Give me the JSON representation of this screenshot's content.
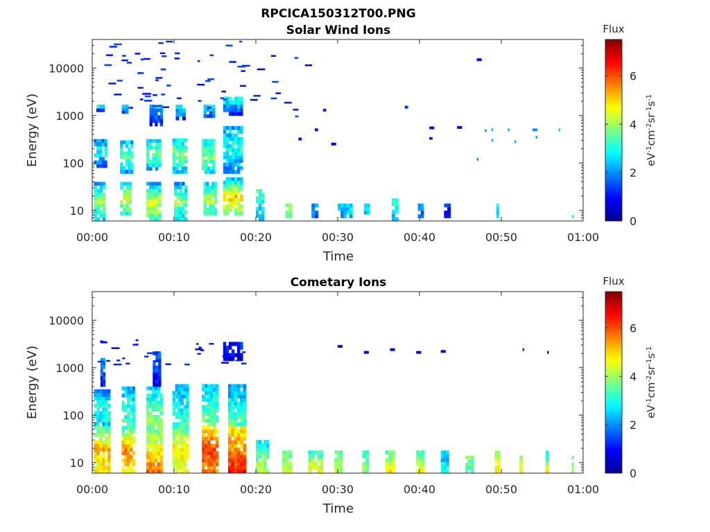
{
  "figure_title": "RPCICA150312T00.PNG",
  "chart_data": [
    {
      "type": "heatmap",
      "title": "Solar Wind Ions",
      "xlabel": "Time",
      "ylabel": "Energy (eV)",
      "yscale": "log",
      "ylim": [
        6,
        40000
      ],
      "xlim_minutes": [
        0,
        60
      ],
      "x_tick_labels": [
        "00:00",
        "00:10",
        "00:20",
        "00:30",
        "00:40",
        "00:50",
        "01:00"
      ],
      "y_tick_labels": [
        "10",
        "100",
        "1000",
        "10000"
      ],
      "y_tick_values": [
        10,
        100,
        1000,
        10000
      ],
      "colorbar": {
        "label": "Flux",
        "unit_label": "eV-1cm-2sr-1s-1",
        "clim": [
          0,
          7.5
        ],
        "tick_labels": [
          "0",
          "2",
          "4",
          "6"
        ],
        "tick_values": [
          0,
          2,
          4,
          6
        ],
        "colormap": "jet"
      },
      "grid": false,
      "patches": [
        {
          "x": [
            0.2,
            1.6
          ],
          "e": [
            6,
            40
          ],
          "flux": [
            2.6,
            4.0,
            2.2
          ]
        },
        {
          "x": [
            0.2,
            1.8
          ],
          "e": [
            80,
            320
          ],
          "flux": [
            1.2,
            3.0,
            2.0
          ]
        },
        {
          "x": [
            0.5,
            1.5
          ],
          "e": [
            1200,
            1700
          ],
          "flux": [
            1.5,
            3.0
          ]
        },
        {
          "x": [
            3.4,
            4.8
          ],
          "e": [
            8,
            40
          ],
          "flux": [
            3.0,
            4.5,
            2.6
          ]
        },
        {
          "x": [
            3.4,
            5.0
          ],
          "e": [
            60,
            300
          ],
          "flux": [
            2.0,
            3.5,
            2.4
          ]
        },
        {
          "x": [
            3.6,
            4.4
          ],
          "e": [
            1100,
            1700
          ],
          "flux": [
            1.5,
            2.5
          ]
        },
        {
          "x": [
            6.6,
            8.4
          ],
          "e": [
            6,
            40
          ],
          "flux": [
            3.2,
            4.4,
            2.2
          ]
        },
        {
          "x": [
            6.6,
            8.4
          ],
          "e": [
            70,
            320
          ],
          "flux": [
            2.2,
            3.6,
            2.8
          ]
        },
        {
          "x": [
            7.0,
            8.6
          ],
          "e": [
            600,
            1700
          ],
          "flux": [
            1.0,
            2.4
          ]
        },
        {
          "x": [
            10.0,
            11.6
          ],
          "e": [
            6,
            40
          ],
          "flux": [
            2.5,
            3.8,
            2.0
          ]
        },
        {
          "x": [
            9.8,
            11.6
          ],
          "e": [
            60,
            330
          ],
          "flux": [
            2.4,
            3.8,
            2.8
          ]
        },
        {
          "x": [
            10.2,
            11.4
          ],
          "e": [
            800,
            1700
          ],
          "flux": [
            1.4,
            2.6
          ]
        },
        {
          "x": [
            13.6,
            15.2
          ],
          "e": [
            8,
            40
          ],
          "flux": [
            3.2,
            4.2,
            2.4
          ]
        },
        {
          "x": [
            13.4,
            15.0
          ],
          "e": [
            60,
            320
          ],
          "flux": [
            2.6,
            3.8,
            2.8
          ]
        },
        {
          "x": [
            13.6,
            15.0
          ],
          "e": [
            900,
            1700
          ],
          "flux": [
            1.4,
            2.8
          ]
        },
        {
          "x": [
            16.0,
            18.4
          ],
          "e": [
            8,
            50
          ],
          "flux": [
            3.6,
            5.0,
            2.4
          ]
        },
        {
          "x": [
            16.0,
            18.4
          ],
          "e": [
            60,
            600
          ],
          "flux": [
            1.8,
            3.0,
            2.2
          ]
        },
        {
          "x": [
            16.0,
            18.4
          ],
          "e": [
            1000,
            2500
          ],
          "flux": [
            1.2,
            3.0
          ]
        },
        {
          "x": [
            20.0,
            21.0
          ],
          "e": [
            6,
            28
          ],
          "flux": [
            2.0,
            3.4
          ]
        },
        {
          "x": [
            23.6,
            24.4
          ],
          "e": [
            7,
            14
          ],
          "flux": [
            3.6,
            3.8
          ]
        },
        {
          "x": [
            26.8,
            27.6
          ],
          "e": [
            7,
            14
          ],
          "flux": [
            1.8,
            2.2
          ]
        },
        {
          "x": [
            30.0,
            31.8
          ],
          "e": [
            7,
            14
          ],
          "flux": [
            2.2,
            2.6
          ]
        },
        {
          "x": [
            33.2,
            33.9
          ],
          "e": [
            7,
            14
          ],
          "flux": [
            2.4,
            2.6
          ]
        },
        {
          "x": [
            36.6,
            37.4
          ],
          "e": [
            6,
            18
          ],
          "flux": [
            2.6,
            2.8
          ]
        },
        {
          "x": [
            39.8,
            40.5
          ],
          "e": [
            7,
            14
          ],
          "flux": [
            1.8,
            2.0
          ]
        },
        {
          "x": [
            43.0,
            43.8
          ],
          "e": [
            7,
            14
          ],
          "flux": [
            1.2,
            1.6
          ]
        },
        {
          "x": [
            49.4,
            49.7
          ],
          "e": [
            7,
            14
          ],
          "flux": [
            2.6,
            2.8
          ]
        },
        {
          "x": [
            58.6,
            58.8
          ],
          "e": [
            7,
            8
          ],
          "flux": [
            3.0
          ]
        }
      ],
      "bursts": [
        {
          "t0": 0,
          "t1": 18.5,
          "e0": 1500,
          "e1": 38000,
          "flux": 0.9,
          "count": 55
        },
        {
          "t0": 19,
          "t1": 27,
          "e0": 900,
          "e1": 30000,
          "flux": 0.8,
          "count": 12
        }
      ],
      "segments": [
        {
          "x": [
            41.2,
            41.8
          ],
          "e": 550,
          "flux": 1.0
        },
        {
          "x": [
            44.6,
            45.2
          ],
          "e": 560,
          "flux": 0.8
        },
        {
          "x": [
            47.0,
            47.6
          ],
          "e": 15000,
          "flux": 0.9
        },
        {
          "x": [
            41.2,
            41.6
          ],
          "e": 330,
          "flux": 1.2
        },
        {
          "x": [
            38.2,
            38.6
          ],
          "e": 1500,
          "flux": 1.2
        },
        {
          "x": [
            27.2,
            27.6
          ],
          "e": 500,
          "flux": 1.0
        },
        {
          "x": [
            25.2,
            25.6
          ],
          "e": 320,
          "flux": 1.0
        },
        {
          "x": [
            28.2,
            28.6
          ],
          "e": 1300,
          "flux": 1.2
        },
        {
          "x": [
            29.2,
            29.8
          ],
          "e": 250,
          "flux": 1.0
        },
        {
          "x": [
            48.0,
            48.2
          ],
          "e": 480,
          "flux": 2.0
        },
        {
          "x": [
            48.8,
            49.0
          ],
          "e": 500,
          "flux": 2.2
        },
        {
          "x": [
            48.8,
            49.0
          ],
          "e": 300,
          "flux": 2.2
        },
        {
          "x": [
            50.8,
            51.0
          ],
          "e": 500,
          "flux": 2.2
        },
        {
          "x": [
            51.6,
            51.8
          ],
          "e": 280,
          "flux": 2.2
        },
        {
          "x": [
            53.8,
            54.4
          ],
          "e": 500,
          "flux": 2.0
        },
        {
          "x": [
            54.2,
            54.4
          ],
          "e": 350,
          "flux": 2.2
        },
        {
          "x": [
            57.0,
            57.2
          ],
          "e": 500,
          "flux": 2.4
        },
        {
          "x": [
            47.0,
            47.2
          ],
          "e": 120,
          "flux": 2.0
        }
      ]
    },
    {
      "type": "heatmap",
      "title": "Cometary Ions",
      "xlabel": "Time",
      "ylabel": "Energy (eV)",
      "yscale": "log",
      "ylim": [
        6,
        40000
      ],
      "xlim_minutes": [
        0,
        60
      ],
      "x_tick_labels": [
        "00:00",
        "00:10",
        "00:20",
        "00:30",
        "00:40",
        "00:50",
        "01:00"
      ],
      "y_tick_labels": [
        "10",
        "100",
        "1000",
        "10000"
      ],
      "y_tick_values": [
        10,
        100,
        1000,
        10000
      ],
      "colorbar": {
        "label": "Flux",
        "unit_label": "eV-1cm-2sr-1s-1",
        "clim": [
          0,
          7.5
        ],
        "tick_labels": [
          "0",
          "2",
          "4",
          "6"
        ],
        "tick_values": [
          0,
          2,
          4,
          6
        ],
        "colormap": "jet"
      },
      "grid": false,
      "patches": [
        {
          "x": [
            0.2,
            2.2
          ],
          "e": [
            6,
            60
          ],
          "flux": [
            4.6,
            5.2,
            3.4
          ]
        },
        {
          "x": [
            0.2,
            2.2
          ],
          "e": [
            60,
            350
          ],
          "flux": [
            2.6,
            3.2,
            1.8
          ]
        },
        {
          "x": [
            1.0,
            1.6
          ],
          "e": [
            400,
            1600
          ],
          "flux": [
            1.0,
            2.2
          ]
        },
        {
          "x": [
            3.6,
            5.2
          ],
          "e": [
            6,
            50
          ],
          "flux": [
            4.8,
            5.6,
            3.8
          ]
        },
        {
          "x": [
            3.6,
            5.2
          ],
          "e": [
            50,
            400
          ],
          "flux": [
            3.4,
            3.0,
            2.2
          ]
        },
        {
          "x": [
            6.6,
            8.6
          ],
          "e": [
            6,
            60
          ],
          "flux": [
            5.8,
            4.6,
            3.6
          ]
        },
        {
          "x": [
            6.6,
            8.6
          ],
          "e": [
            60,
            400
          ],
          "flux": [
            3.8,
            3.4,
            2.4
          ]
        },
        {
          "x": [
            7.4,
            8.4
          ],
          "e": [
            400,
            2200
          ],
          "flux": [
            1.0,
            1.6
          ]
        },
        {
          "x": [
            9.8,
            11.8
          ],
          "e": [
            6,
            60
          ],
          "flux": [
            4.4,
            4.8,
            3.6
          ]
        },
        {
          "x": [
            9.8,
            11.8
          ],
          "e": [
            60,
            450
          ],
          "flux": [
            3.2,
            2.8,
            2.2
          ]
        },
        {
          "x": [
            13.4,
            15.4
          ],
          "e": [
            6,
            60
          ],
          "flux": [
            5.6,
            6.0,
            4.8
          ]
        },
        {
          "x": [
            13.4,
            15.4
          ],
          "e": [
            60,
            450
          ],
          "flux": [
            3.8,
            3.2,
            2.4
          ]
        },
        {
          "x": [
            16.6,
            18.8
          ],
          "e": [
            6,
            60
          ],
          "flux": [
            6.6,
            5.4,
            4.8
          ]
        },
        {
          "x": [
            16.6,
            18.8
          ],
          "e": [
            60,
            450
          ],
          "flux": [
            3.4,
            2.8,
            2.2
          ]
        },
        {
          "x": [
            16.0,
            18.4
          ],
          "e": [
            1400,
            3500
          ],
          "flux": [
            0.6,
            1.0
          ]
        },
        {
          "x": [
            20.0,
            21.6
          ],
          "e": [
            6,
            30
          ],
          "flux": [
            4.2,
            3.6,
            2.6
          ]
        },
        {
          "x": [
            23.2,
            24.4
          ],
          "e": [
            6,
            18
          ],
          "flux": [
            4.4,
            3.6
          ]
        },
        {
          "x": [
            26.4,
            28.2
          ],
          "e": [
            6,
            18
          ],
          "flux": [
            4.6,
            3.2
          ]
        },
        {
          "x": [
            29.6,
            30.6
          ],
          "e": [
            6,
            18
          ],
          "flux": [
            4.2,
            3.4
          ]
        },
        {
          "x": [
            33.0,
            33.8
          ],
          "e": [
            6,
            18
          ],
          "flux": [
            4.0,
            3.2
          ]
        },
        {
          "x": [
            35.8,
            37.0
          ],
          "e": [
            6,
            18
          ],
          "flux": [
            4.8,
            3.4
          ]
        },
        {
          "x": [
            39.6,
            40.6
          ],
          "e": [
            6,
            18
          ],
          "flux": [
            4.6,
            3.4
          ]
        },
        {
          "x": [
            42.6,
            43.6
          ],
          "e": [
            6,
            18
          ],
          "flux": [
            3.0,
            2.2
          ]
        },
        {
          "x": [
            45.6,
            46.6
          ],
          "e": [
            6,
            14
          ],
          "flux": [
            3.2,
            3.6
          ]
        },
        {
          "x": [
            49.2,
            49.8
          ],
          "e": [
            6,
            18
          ],
          "flux": [
            4.8,
            3.6
          ]
        },
        {
          "x": [
            52.2,
            52.6
          ],
          "e": [
            6,
            14
          ],
          "flux": [
            4.8,
            4.4
          ]
        },
        {
          "x": [
            55.4,
            55.8
          ],
          "e": [
            6,
            18
          ],
          "flux": [
            4.8,
            3.0
          ]
        },
        {
          "x": [
            58.6,
            58.8
          ],
          "e": [
            6,
            14
          ],
          "flux": [
            4.0,
            3.6
          ]
        }
      ],
      "bursts": [
        {
          "t0": 0.5,
          "t1": 18.5,
          "e0": 1200,
          "e1": 4000,
          "flux": 0.8,
          "count": 30
        }
      ],
      "segments": [
        {
          "x": [
            30.0,
            30.6
          ],
          "e": 2800,
          "flux": 1.0
        },
        {
          "x": [
            33.2,
            33.8
          ],
          "e": 2100,
          "flux": 0.8
        },
        {
          "x": [
            36.4,
            37.0
          ],
          "e": 2400,
          "flux": 0.9
        },
        {
          "x": [
            39.6,
            40.2
          ],
          "e": 2100,
          "flux": 0.8
        },
        {
          "x": [
            42.6,
            43.2
          ],
          "e": 2200,
          "flux": 0.8
        },
        {
          "x": [
            52.6,
            52.8
          ],
          "e": 2400,
          "flux": 1.2
        },
        {
          "x": [
            55.6,
            55.8
          ],
          "e": 2100,
          "flux": 1.0
        }
      ]
    }
  ]
}
